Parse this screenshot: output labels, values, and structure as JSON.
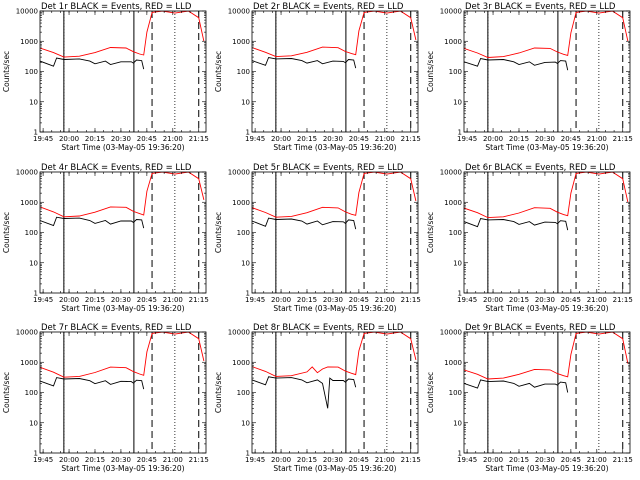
{
  "figure": {
    "ylabel": "Counts/sec",
    "xlabel": "Start Time (03-May-05 19:36:20)",
    "x_tick_labels": [
      "19:45",
      "20:00",
      "20:15",
      "20:30",
      "20:45",
      "21:00",
      "21:15"
    ],
    "y_tick_labels": [
      "1",
      "10",
      "100",
      "1000",
      "10000"
    ],
    "colors": {
      "events": "#000000",
      "lld": "#ff0000",
      "frame": "#000000",
      "background": "#ffffff"
    }
  },
  "chart_data": [
    {
      "type": "line",
      "title": "Det 1r  BLACK = Events, RED = LLD",
      "row": 0,
      "col": 0,
      "xlim": [
        19.72,
        21.32
      ],
      "ylim": [
        1,
        10000
      ],
      "yscale": "log",
      "solid_lines": [
        19.95,
        20.625
      ],
      "dotted_lines": [
        19.95,
        21.02
      ],
      "dashed_lines": [
        20.8,
        21.25
      ],
      "series": [
        {
          "name": "Events",
          "color": "#000000",
          "x": [
            19.72,
            19.85,
            19.88,
            19.95,
            20.1,
            20.2,
            20.25,
            20.35,
            20.4,
            20.5,
            20.6,
            20.62,
            20.65,
            20.7,
            20.72
          ],
          "y": [
            220,
            150,
            280,
            250,
            260,
            220,
            180,
            220,
            170,
            210,
            210,
            190,
            240,
            230,
            120
          ]
        },
        {
          "name": "LLD",
          "color": "#ff0000",
          "x": [
            19.72,
            19.85,
            19.95,
            20.1,
            20.25,
            20.4,
            20.55,
            20.62,
            20.68,
            20.72,
            20.75,
            20.8,
            20.9,
            21.02,
            21.15,
            21.25,
            21.3
          ],
          "y": [
            600,
            420,
            300,
            320,
            420,
            620,
            600,
            450,
            380,
            350,
            2000,
            9000,
            10000,
            8500,
            10000,
            6000,
            1000
          ]
        }
      ]
    },
    {
      "type": "line",
      "title": "Det 2r  BLACK = Events, RED = LLD",
      "row": 0,
      "col": 1,
      "xlim": [
        19.72,
        21.32
      ],
      "ylim": [
        1,
        10000
      ],
      "yscale": "log",
      "solid_lines": [
        19.95,
        20.625
      ],
      "dotted_lines": [
        19.95,
        21.02
      ],
      "dashed_lines": [
        20.8,
        21.25
      ],
      "series": [
        {
          "name": "Events",
          "color": "#000000",
          "x": [
            19.72,
            19.85,
            19.88,
            19.95,
            20.1,
            20.2,
            20.25,
            20.35,
            20.4,
            20.5,
            20.6,
            20.62,
            20.65,
            20.7,
            20.72
          ],
          "y": [
            230,
            160,
            290,
            260,
            270,
            230,
            190,
            230,
            180,
            220,
            215,
            195,
            250,
            240,
            130
          ]
        },
        {
          "name": "LLD",
          "color": "#ff0000",
          "x": [
            19.72,
            19.85,
            19.95,
            20.1,
            20.25,
            20.4,
            20.55,
            20.62,
            20.68,
            20.72,
            20.75,
            20.8,
            20.9,
            21.02,
            21.15,
            21.25,
            21.3
          ],
          "y": [
            620,
            430,
            310,
            330,
            430,
            640,
            610,
            460,
            390,
            360,
            2200,
            9000,
            10000,
            8500,
            10000,
            6000,
            1100
          ]
        }
      ]
    },
    {
      "type": "line",
      "title": "Det 3r  BLACK = Events, RED = LLD",
      "row": 0,
      "col": 2,
      "xlim": [
        19.72,
        21.32
      ],
      "ylim": [
        1,
        10000
      ],
      "yscale": "log",
      "solid_lines": [
        19.95,
        20.625
      ],
      "dotted_lines": [
        19.95,
        21.02
      ],
      "dashed_lines": [
        20.8,
        21.25
      ],
      "series": [
        {
          "name": "Events",
          "color": "#000000",
          "x": [
            19.72,
            19.85,
            19.88,
            19.95,
            20.1,
            20.2,
            20.25,
            20.35,
            20.4,
            20.5,
            20.6,
            20.62,
            20.65,
            20.7,
            20.72
          ],
          "y": [
            210,
            150,
            270,
            240,
            250,
            210,
            170,
            210,
            160,
            200,
            205,
            185,
            230,
            220,
            110
          ]
        },
        {
          "name": "LLD",
          "color": "#ff0000",
          "x": [
            19.72,
            19.85,
            19.95,
            20.1,
            20.25,
            20.4,
            20.55,
            20.62,
            20.68,
            20.72,
            20.75,
            20.8,
            20.9,
            21.02,
            21.15,
            21.25,
            21.3
          ],
          "y": [
            580,
            410,
            290,
            310,
            410,
            600,
            580,
            440,
            370,
            340,
            1900,
            9000,
            10000,
            8500,
            10000,
            6000,
            1000
          ]
        }
      ]
    },
    {
      "type": "line",
      "title": "Det 4r  BLACK = Events, RED = LLD",
      "row": 1,
      "col": 0,
      "xlim": [
        19.72,
        21.32
      ],
      "ylim": [
        1,
        10000
      ],
      "yscale": "log",
      "solid_lines": [
        19.95,
        20.625
      ],
      "dotted_lines": [
        19.95,
        21.02
      ],
      "dashed_lines": [
        20.8,
        21.25
      ],
      "series": [
        {
          "name": "Events",
          "color": "#000000",
          "x": [
            19.72,
            19.85,
            19.88,
            19.95,
            20.1,
            20.2,
            20.25,
            20.35,
            20.4,
            20.5,
            20.6,
            20.62,
            20.65,
            20.7,
            20.72
          ],
          "y": [
            250,
            170,
            320,
            290,
            300,
            250,
            200,
            250,
            190,
            240,
            240,
            215,
            270,
            260,
            140
          ]
        },
        {
          "name": "LLD",
          "color": "#ff0000",
          "x": [
            19.72,
            19.85,
            19.95,
            20.1,
            20.25,
            20.4,
            20.55,
            20.62,
            20.68,
            20.72,
            20.75,
            20.8,
            20.9,
            21.02,
            21.15,
            21.25,
            21.3
          ],
          "y": [
            700,
            480,
            330,
            350,
            470,
            700,
            680,
            500,
            420,
            380,
            2300,
            9000,
            10000,
            8500,
            10000,
            6000,
            1200
          ]
        }
      ]
    },
    {
      "type": "line",
      "title": "Det 5r  BLACK = Events, RED = LLD",
      "row": 1,
      "col": 1,
      "xlim": [
        19.72,
        21.32
      ],
      "ylim": [
        1,
        10000
      ],
      "yscale": "log",
      "solid_lines": [
        19.95,
        20.625
      ],
      "dotted_lines": [
        19.95,
        21.02
      ],
      "dashed_lines": [
        20.8,
        21.25
      ],
      "series": [
        {
          "name": "Events",
          "color": "#000000",
          "x": [
            19.72,
            19.85,
            19.88,
            19.95,
            20.1,
            20.2,
            20.25,
            20.35,
            20.4,
            20.5,
            20.6,
            20.62,
            20.65,
            20.7,
            20.72
          ],
          "y": [
            240,
            160,
            300,
            270,
            280,
            240,
            190,
            240,
            180,
            230,
            225,
            200,
            260,
            250,
            130
          ]
        },
        {
          "name": "LLD",
          "color": "#ff0000",
          "x": [
            19.72,
            19.85,
            19.95,
            20.1,
            20.25,
            20.4,
            20.55,
            20.62,
            20.68,
            20.72,
            20.75,
            20.8,
            20.9,
            21.02,
            21.15,
            21.25,
            21.3
          ],
          "y": [
            660,
            460,
            320,
            340,
            450,
            680,
            650,
            480,
            400,
            370,
            2100,
            9000,
            10000,
            8500,
            10000,
            6000,
            1100
          ]
        }
      ]
    },
    {
      "type": "line",
      "title": "Det 6r  BLACK = Events, RED = LLD",
      "row": 1,
      "col": 2,
      "xlim": [
        19.72,
        21.32
      ],
      "ylim": [
        1,
        10000
      ],
      "yscale": "log",
      "solid_lines": [
        19.95,
        20.625
      ],
      "dotted_lines": [
        19.95,
        21.02
      ],
      "dashed_lines": [
        20.8,
        21.25
      ],
      "series": [
        {
          "name": "Events",
          "color": "#000000",
          "x": [
            19.72,
            19.85,
            19.88,
            19.95,
            20.1,
            20.2,
            20.25,
            20.35,
            20.4,
            20.5,
            20.6,
            20.62,
            20.65,
            20.7,
            20.72
          ],
          "y": [
            230,
            155,
            290,
            260,
            270,
            230,
            185,
            230,
            175,
            220,
            215,
            195,
            245,
            235,
            120
          ]
        },
        {
          "name": "LLD",
          "color": "#ff0000",
          "x": [
            19.72,
            19.85,
            19.95,
            20.1,
            20.25,
            20.4,
            20.55,
            20.62,
            20.68,
            20.72,
            20.75,
            20.8,
            20.9,
            21.02,
            21.15,
            21.25,
            21.3
          ],
          "y": [
            640,
            450,
            310,
            330,
            440,
            660,
            630,
            470,
            390,
            360,
            2000,
            9000,
            10000,
            8500,
            10000,
            6000,
            1000
          ]
        }
      ]
    },
    {
      "type": "line",
      "title": "Det 7r  BLACK = Events, RED = LLD",
      "row": 2,
      "col": 0,
      "xlim": [
        19.72,
        21.32
      ],
      "ylim": [
        1,
        10000
      ],
      "yscale": "log",
      "solid_lines": [
        19.95,
        20.625
      ],
      "dotted_lines": [
        19.95,
        21.02
      ],
      "dashed_lines": [
        20.8,
        21.25
      ],
      "series": [
        {
          "name": "Events",
          "color": "#000000",
          "x": [
            19.72,
            19.85,
            19.88,
            19.95,
            20.1,
            20.2,
            20.25,
            20.35,
            20.4,
            20.5,
            20.6,
            20.62,
            20.65,
            20.7,
            20.72
          ],
          "y": [
            240,
            165,
            310,
            280,
            290,
            245,
            195,
            245,
            185,
            235,
            230,
            205,
            255,
            245,
            130
          ]
        },
        {
          "name": "LLD",
          "color": "#ff0000",
          "x": [
            19.72,
            19.85,
            19.95,
            20.1,
            20.25,
            20.4,
            20.55,
            20.62,
            20.68,
            20.72,
            20.75,
            20.8,
            20.9,
            21.02,
            21.15,
            21.25,
            21.3
          ],
          "y": [
            680,
            470,
            320,
            340,
            460,
            690,
            660,
            490,
            410,
            370,
            2200,
            9000,
            10000,
            8500,
            10000,
            6000,
            1100
          ]
        }
      ]
    },
    {
      "type": "line",
      "title": "Det 8r  BLACK = Events, RED = LLD",
      "row": 2,
      "col": 1,
      "xlim": [
        19.72,
        21.32
      ],
      "ylim": [
        1,
        10000
      ],
      "yscale": "log",
      "solid_lines": [
        19.95,
        20.625
      ],
      "dotted_lines": [
        19.95,
        21.02
      ],
      "dashed_lines": [
        20.8,
        21.25
      ],
      "series": [
        {
          "name": "Events",
          "color": "#000000",
          "x": [
            19.72,
            19.85,
            19.88,
            19.95,
            20.1,
            20.2,
            20.25,
            20.35,
            20.4,
            20.45,
            20.47,
            20.5,
            20.6,
            20.62,
            20.65,
            20.7,
            20.72
          ],
          "y": [
            260,
            180,
            330,
            300,
            310,
            260,
            210,
            260,
            200,
            30,
            300,
            250,
            250,
            220,
            280,
            270,
            150
          ]
        },
        {
          "name": "LLD",
          "color": "#ff0000",
          "x": [
            19.72,
            19.85,
            19.95,
            20.1,
            20.25,
            20.3,
            20.35,
            20.4,
            20.45,
            20.55,
            20.62,
            20.68,
            20.72,
            20.75,
            20.8,
            20.9,
            21.02,
            21.15,
            21.25,
            21.3
          ],
          "y": [
            720,
            500,
            340,
            360,
            480,
            700,
            450,
            600,
            700,
            690,
            510,
            430,
            390,
            2400,
            9000,
            10000,
            8500,
            10000,
            6000,
            1200
          ]
        }
      ]
    },
    {
      "type": "line",
      "title": "Det 9r  BLACK = Events, RED = LLD",
      "row": 2,
      "col": 2,
      "xlim": [
        19.72,
        21.32
      ],
      "ylim": [
        1,
        10000
      ],
      "yscale": "log",
      "solid_lines": [
        19.95,
        20.625
      ],
      "dotted_lines": [
        19.95,
        21.02
      ],
      "dashed_lines": [
        20.8,
        21.25
      ],
      "series": [
        {
          "name": "Events",
          "color": "#000000",
          "x": [
            19.72,
            19.85,
            19.88,
            19.95,
            20.1,
            20.2,
            20.25,
            20.35,
            20.4,
            20.5,
            20.6,
            20.62,
            20.65,
            20.7,
            20.72
          ],
          "y": [
            200,
            140,
            260,
            230,
            240,
            200,
            160,
            200,
            150,
            190,
            190,
            175,
            220,
            210,
            100
          ]
        },
        {
          "name": "LLD",
          "color": "#ff0000",
          "x": [
            19.72,
            19.85,
            19.95,
            20.1,
            20.25,
            20.4,
            20.55,
            20.62,
            20.68,
            20.72,
            20.75,
            20.8,
            20.9,
            21.02,
            21.15,
            21.25,
            21.3
          ],
          "y": [
            560,
            400,
            280,
            300,
            400,
            580,
            560,
            420,
            360,
            330,
            1800,
            9000,
            10000,
            8500,
            10000,
            6000,
            900
          ]
        }
      ]
    }
  ]
}
